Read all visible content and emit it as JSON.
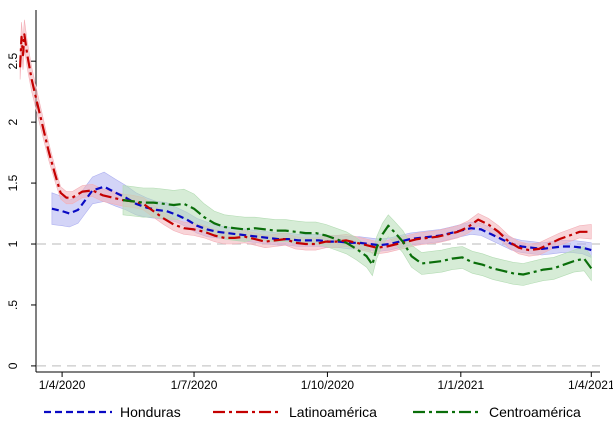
{
  "chart_data": {
    "type": "line",
    "title": "",
    "xlabel": "",
    "ylabel": "",
    "x_ticks": [
      "1/4/2020",
      "1/7/2020",
      "1/10/2020",
      "1/1/2021",
      "1/4/2021"
    ],
    "y_ticks": [
      "0",
      ".5",
      "1",
      "1.5",
      "2",
      "2.5"
    ],
    "ylim": [
      -0.05,
      2.92
    ],
    "reference_lines": [
      0,
      1
    ],
    "legend_position": "bottom",
    "series": [
      {
        "name": "Honduras",
        "color": "#0a0ac4",
        "band_color": "#aeb0f0",
        "dash": "dash",
        "x": [
          "2020-03-25",
          "2020-04-01",
          "2020-04-06",
          "2020-04-12",
          "2020-04-17",
          "2020-04-22",
          "2020-04-30",
          "2020-05-08",
          "2020-05-15",
          "2020-05-22",
          "2020-05-29",
          "2020-06-05",
          "2020-06-12",
          "2020-06-19",
          "2020-06-26",
          "2020-07-03",
          "2020-07-10",
          "2020-07-17",
          "2020-07-24",
          "2020-07-31",
          "2020-08-07",
          "2020-08-14",
          "2020-08-21",
          "2020-08-28",
          "2020-09-04",
          "2020-09-11",
          "2020-09-18",
          "2020-09-25",
          "2020-10-02",
          "2020-10-09",
          "2020-10-16",
          "2020-10-23",
          "2020-10-30",
          "2020-11-06",
          "2020-11-13",
          "2020-11-20",
          "2020-11-27",
          "2020-12-04",
          "2020-12-11",
          "2020-12-18",
          "2020-12-25",
          "2021-01-01",
          "2021-01-08",
          "2021-01-15",
          "2021-01-22",
          "2021-01-29",
          "2021-02-05",
          "2021-02-12",
          "2021-02-19",
          "2021-02-26",
          "2021-03-05",
          "2021-03-12",
          "2021-03-19",
          "2021-03-26",
          "2021-04-01"
        ],
        "values": [
          1.29,
          1.27,
          1.25,
          1.28,
          1.36,
          1.44,
          1.47,
          1.42,
          1.38,
          1.33,
          1.3,
          1.28,
          1.27,
          1.24,
          1.2,
          1.15,
          1.12,
          1.1,
          1.09,
          1.08,
          1.07,
          1.06,
          1.05,
          1.04,
          1.04,
          1.03,
          1.03,
          1.03,
          1.02,
          1.02,
          1.01,
          1.01,
          1.0,
          0.99,
          1.0,
          1.02,
          1.04,
          1.05,
          1.06,
          1.07,
          1.09,
          1.11,
          1.13,
          1.12,
          1.08,
          1.04,
          1.0,
          0.98,
          0.97,
          0.96,
          0.97,
          0.98,
          0.98,
          0.97,
          0.95
        ],
        "band_halfwidth": [
          0.13,
          0.12,
          0.11,
          0.11,
          0.11,
          0.11,
          0.12,
          0.11,
          0.1,
          0.09,
          0.08,
          0.07,
          0.07,
          0.06,
          0.06,
          0.06,
          0.06,
          0.05,
          0.05,
          0.05,
          0.05,
          0.05,
          0.05,
          0.05,
          0.05,
          0.05,
          0.05,
          0.05,
          0.05,
          0.05,
          0.05,
          0.05,
          0.05,
          0.05,
          0.05,
          0.05,
          0.05,
          0.05,
          0.05,
          0.05,
          0.05,
          0.05,
          0.05,
          0.05,
          0.05,
          0.05,
          0.05,
          0.05,
          0.05,
          0.05,
          0.05,
          0.05,
          0.05,
          0.05,
          0.06
        ]
      },
      {
        "name": "Latinoamérica",
        "color": "#c40000",
        "band_color": "#f3b0b8",
        "dash": "dashdot",
        "x": [
          "2020-03-03",
          "2020-03-04",
          "2020-03-05",
          "2020-03-06",
          "2020-03-08",
          "2020-03-11",
          "2020-03-15",
          "2020-03-19",
          "2020-03-23",
          "2020-03-27",
          "2020-03-31",
          "2020-04-04",
          "2020-04-08",
          "2020-04-15",
          "2020-04-22",
          "2020-04-29",
          "2020-05-06",
          "2020-05-13",
          "2020-05-20",
          "2020-05-27",
          "2020-06-03",
          "2020-06-10",
          "2020-06-17",
          "2020-06-24",
          "2020-07-01",
          "2020-07-08",
          "2020-07-15",
          "2020-07-22",
          "2020-07-29",
          "2020-08-05",
          "2020-08-12",
          "2020-08-19",
          "2020-08-26",
          "2020-09-02",
          "2020-09-09",
          "2020-09-16",
          "2020-09-23",
          "2020-09-30",
          "2020-10-07",
          "2020-10-14",
          "2020-10-21",
          "2020-10-28",
          "2020-11-04",
          "2020-11-11",
          "2020-11-18",
          "2020-11-25",
          "2020-12-02",
          "2020-12-09",
          "2020-12-16",
          "2020-12-23",
          "2020-12-30",
          "2021-01-06",
          "2021-01-13",
          "2021-01-20",
          "2021-01-27",
          "2021-02-03",
          "2021-02-10",
          "2021-02-17",
          "2021-02-24",
          "2021-03-03",
          "2021-03-10",
          "2021-03-17",
          "2021-03-24",
          "2021-04-01"
        ],
        "values": [
          2.45,
          2.7,
          2.55,
          2.72,
          2.55,
          2.35,
          2.15,
          1.95,
          1.75,
          1.58,
          1.42,
          1.38,
          1.38,
          1.43,
          1.44,
          1.4,
          1.38,
          1.36,
          1.35,
          1.33,
          1.27,
          1.21,
          1.16,
          1.13,
          1.12,
          1.1,
          1.07,
          1.05,
          1.05,
          1.06,
          1.04,
          1.02,
          1.03,
          1.04,
          1.01,
          1.0,
          1.0,
          1.02,
          1.02,
          1.03,
          1.01,
          0.99,
          0.97,
          0.98,
          1.0,
          1.02,
          1.04,
          1.05,
          1.06,
          1.08,
          1.1,
          1.14,
          1.2,
          1.16,
          1.1,
          1.02,
          0.97,
          0.95,
          0.96,
          1.0,
          1.04,
          1.07,
          1.1,
          1.1
        ],
        "band_halfwidth": [
          0.1,
          0.12,
          0.12,
          0.12,
          0.11,
          0.1,
          0.09,
          0.08,
          0.07,
          0.06,
          0.05,
          0.05,
          0.05,
          0.05,
          0.05,
          0.05,
          0.05,
          0.05,
          0.05,
          0.05,
          0.05,
          0.05,
          0.05,
          0.05,
          0.05,
          0.05,
          0.05,
          0.05,
          0.05,
          0.05,
          0.05,
          0.05,
          0.05,
          0.05,
          0.05,
          0.05,
          0.05,
          0.05,
          0.05,
          0.05,
          0.05,
          0.05,
          0.05,
          0.05,
          0.05,
          0.05,
          0.05,
          0.05,
          0.05,
          0.05,
          0.05,
          0.05,
          0.05,
          0.05,
          0.05,
          0.05,
          0.05,
          0.05,
          0.05,
          0.05,
          0.05,
          0.05,
          0.05,
          0.06
        ]
      },
      {
        "name": "Centroamérica",
        "color": "#0a6e0a",
        "band_color": "#b4dcb4",
        "dash": "dashdot",
        "x": [
          "2020-05-13",
          "2020-05-20",
          "2020-05-27",
          "2020-06-03",
          "2020-06-10",
          "2020-06-17",
          "2020-06-24",
          "2020-07-01",
          "2020-07-08",
          "2020-07-15",
          "2020-07-22",
          "2020-07-29",
          "2020-08-05",
          "2020-08-12",
          "2020-08-19",
          "2020-08-26",
          "2020-09-02",
          "2020-09-09",
          "2020-09-16",
          "2020-09-23",
          "2020-09-30",
          "2020-10-07",
          "2020-10-14",
          "2020-10-21",
          "2020-10-28",
          "2020-11-01",
          "2020-11-04",
          "2020-11-08",
          "2020-11-12",
          "2020-11-16",
          "2020-11-22",
          "2020-11-28",
          "2020-12-05",
          "2020-12-12",
          "2020-12-19",
          "2020-12-26",
          "2021-01-02",
          "2021-01-09",
          "2021-01-16",
          "2021-01-23",
          "2021-01-30",
          "2021-02-06",
          "2021-02-13",
          "2021-02-20",
          "2021-02-27",
          "2021-03-06",
          "2021-03-13",
          "2021-03-20",
          "2021-03-27",
          "2021-04-01"
        ],
        "values": [
          1.36,
          1.35,
          1.34,
          1.34,
          1.33,
          1.32,
          1.33,
          1.29,
          1.22,
          1.17,
          1.14,
          1.13,
          1.12,
          1.13,
          1.12,
          1.11,
          1.11,
          1.1,
          1.09,
          1.09,
          1.07,
          1.04,
          1.01,
          0.96,
          0.9,
          0.83,
          0.97,
          1.08,
          1.15,
          1.1,
          1.02,
          0.9,
          0.84,
          0.85,
          0.86,
          0.88,
          0.89,
          0.85,
          0.83,
          0.8,
          0.78,
          0.76,
          0.75,
          0.77,
          0.79,
          0.8,
          0.83,
          0.86,
          0.88,
          0.8
        ],
        "band_halfwidth": [
          0.12,
          0.12,
          0.12,
          0.12,
          0.12,
          0.12,
          0.12,
          0.12,
          0.11,
          0.1,
          0.1,
          0.1,
          0.1,
          0.09,
          0.09,
          0.09,
          0.09,
          0.09,
          0.09,
          0.09,
          0.09,
          0.09,
          0.09,
          0.09,
          0.09,
          0.09,
          0.09,
          0.09,
          0.09,
          0.09,
          0.09,
          0.09,
          0.09,
          0.09,
          0.09,
          0.09,
          0.09,
          0.09,
          0.09,
          0.09,
          0.09,
          0.09,
          0.09,
          0.09,
          0.09,
          0.09,
          0.09,
          0.09,
          0.1,
          0.1
        ]
      }
    ]
  }
}
